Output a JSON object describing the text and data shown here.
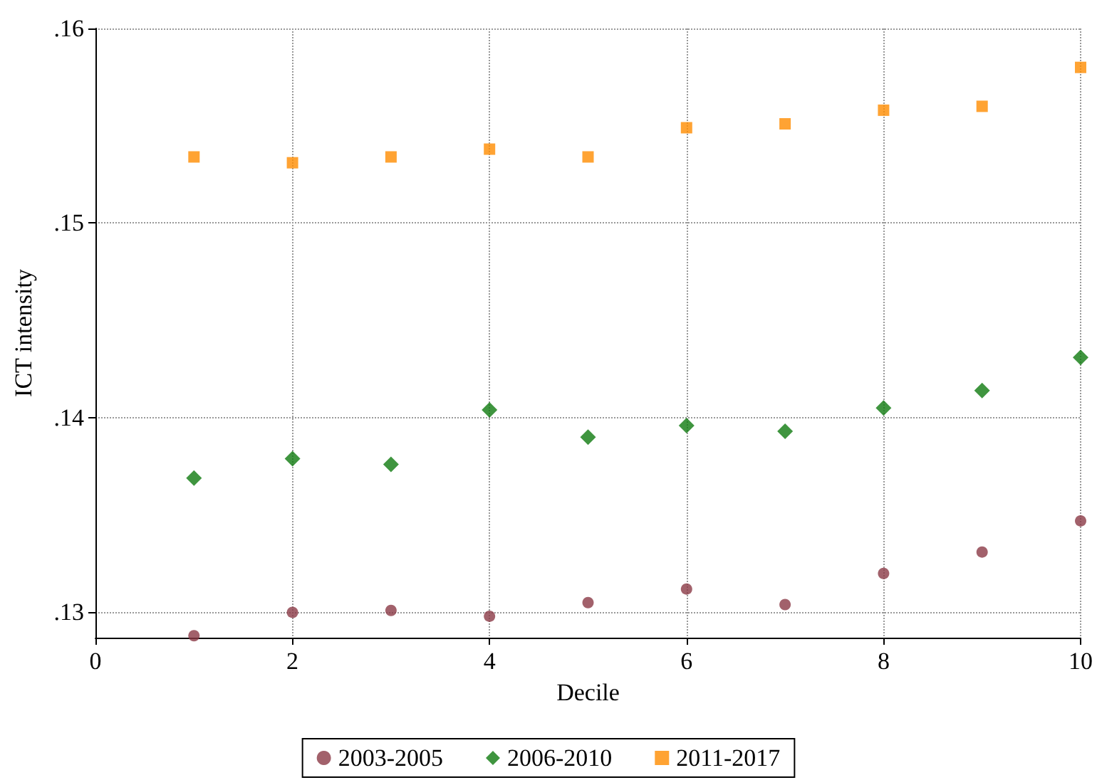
{
  "chart_data": {
    "type": "scatter",
    "xlabel": "Decile",
    "ylabel": "ICT intensity",
    "x": [
      1,
      2,
      3,
      4,
      5,
      6,
      7,
      8,
      9,
      10
    ],
    "series": [
      {
        "name": "2003-2005",
        "color": "#8b3a46",
        "marker": "circle",
        "values": [
          0.1288,
          0.13,
          0.1301,
          0.1298,
          0.1305,
          0.1312,
          0.1304,
          0.132,
          0.1331,
          0.1347
        ]
      },
      {
        "name": "2006-2010",
        "color": "#0f7a0f",
        "marker": "diamond",
        "values": [
          0.1369,
          0.1379,
          0.1376,
          0.1404,
          0.139,
          0.1396,
          0.1393,
          0.1405,
          0.1414,
          0.1431
        ]
      },
      {
        "name": "2011-2017",
        "color": "#ff8c00",
        "marker": "square",
        "values": [
          0.1534,
          0.1531,
          0.1534,
          0.1538,
          0.1534,
          0.1549,
          0.1551,
          0.1558,
          0.156,
          0.158
        ]
      }
    ],
    "xlim": [
      0,
      10
    ],
    "xticks": [
      0,
      2,
      4,
      6,
      8,
      10
    ],
    "ylim": [
      0.1287,
      0.16
    ],
    "yticks": [
      {
        "value": 0.13,
        "label": ".13"
      },
      {
        "value": 0.14,
        "label": ".14"
      },
      {
        "value": 0.15,
        "label": ".15"
      },
      {
        "value": 0.16,
        "label": ".16"
      }
    ],
    "grid": true,
    "legend": "bottom"
  }
}
